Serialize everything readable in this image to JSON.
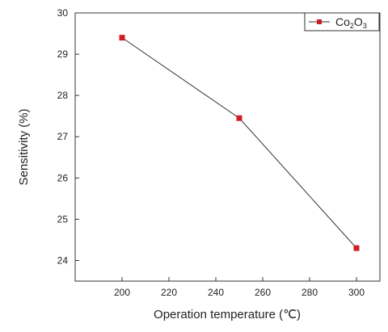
{
  "chart_data": {
    "type": "line",
    "title": "",
    "xlabel": "Operation temperature (℃)",
    "ylabel": "Sensitivity (%)",
    "xlim": [
      180,
      310
    ],
    "ylim": [
      23.5,
      30
    ],
    "x_ticks": [
      200,
      220,
      240,
      260,
      280,
      300
    ],
    "y_ticks": [
      24,
      25,
      26,
      27,
      28,
      29,
      30
    ],
    "grid": false,
    "legend_position": "top-right",
    "series": [
      {
        "name": "Co2O3",
        "name_parts": {
          "base1": "Co",
          "sub1": "2",
          "base2": "O",
          "sub2": "3"
        },
        "color": "#d11c24",
        "line_color": "#333333",
        "marker": "square",
        "x": [
          200,
          250,
          300
        ],
        "y": [
          29.4,
          27.45,
          24.3
        ]
      }
    ]
  }
}
